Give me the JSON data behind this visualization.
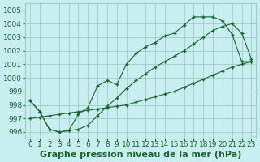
{
  "xlabel": "Graphe pression niveau de la mer (hPa)",
  "background_color": "#c8eef0",
  "grid_color": "#a0ccc8",
  "line_color": "#1a6630",
  "xlim": [
    -0.5,
    23.5
  ],
  "ylim": [
    995.5,
    1005.5
  ],
  "yticks": [
    996,
    997,
    998,
    999,
    1000,
    1001,
    1002,
    1003,
    1004,
    1005
  ],
  "xticks": [
    0,
    1,
    2,
    3,
    4,
    5,
    6,
    7,
    8,
    9,
    10,
    11,
    12,
    13,
    14,
    15,
    16,
    17,
    18,
    19,
    20,
    21,
    22,
    23
  ],
  "line1_x": [
    0,
    1,
    2,
    3,
    4,
    5,
    6,
    7,
    8,
    9,
    10,
    11,
    12,
    13,
    14,
    15,
    16,
    17,
    18,
    19,
    20,
    21,
    22,
    23
  ],
  "line1_y": [
    998.3,
    997.5,
    996.2,
    996.0,
    996.1,
    997.3,
    997.8,
    999.4,
    999.8,
    999.5,
    1001.0,
    1001.8,
    1002.3,
    1002.6,
    1003.1,
    1003.3,
    1003.9,
    1004.5,
    1004.5,
    1004.5,
    1004.2,
    1003.2,
    1001.2,
    1001.2
  ],
  "line2_x": [
    0,
    1,
    2,
    3,
    4,
    5,
    6,
    7,
    8,
    9,
    10,
    11,
    12,
    13,
    14,
    15,
    16,
    17,
    18,
    19,
    20,
    21,
    22,
    23
  ],
  "line2_y": [
    998.3,
    997.5,
    996.2,
    996.0,
    996.1,
    996.2,
    996.5,
    997.2,
    997.9,
    998.5,
    999.2,
    999.8,
    1000.3,
    1000.8,
    1001.2,
    1001.6,
    1002.0,
    1002.5,
    1003.0,
    1003.5,
    1003.8,
    1004.0,
    1003.3,
    1001.4
  ],
  "line3_x": [
    0,
    1,
    2,
    3,
    4,
    5,
    6,
    7,
    8,
    9,
    10,
    11,
    12,
    13,
    14,
    15,
    16,
    17,
    18,
    19,
    20,
    21,
    22,
    23
  ],
  "line3_y": [
    997.0,
    997.1,
    997.2,
    997.3,
    997.4,
    997.5,
    997.6,
    997.7,
    997.8,
    997.9,
    998.0,
    998.2,
    998.4,
    998.6,
    998.8,
    999.0,
    999.3,
    999.6,
    999.9,
    1000.2,
    1000.5,
    1000.8,
    1001.0,
    1001.2
  ],
  "xlabel_fontsize": 8,
  "tick_fontsize": 6.5
}
